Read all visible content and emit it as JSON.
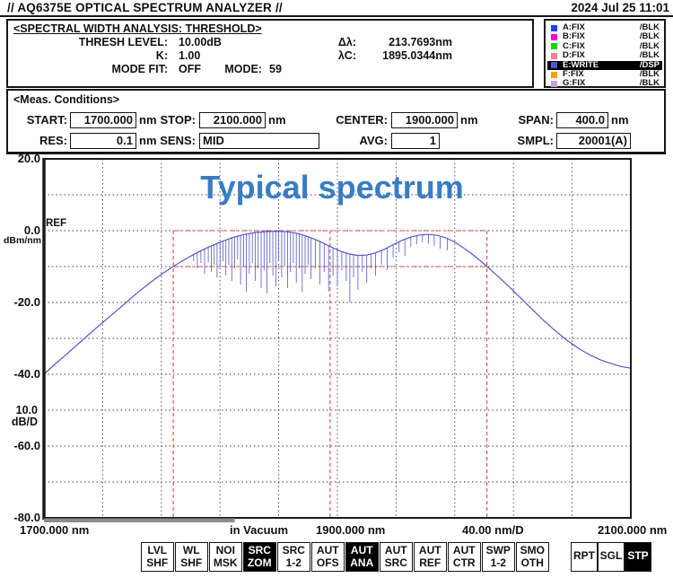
{
  "titlebar": {
    "title": "// AQ6375E OPTICAL SPECTRUM ANALYZER //",
    "datetime": "2024 Jul 25 11:01"
  },
  "analysis": {
    "heading": "<SPECTRAL WIDTH ANALYSIS: THRESHOLD>",
    "left": [
      {
        "label": "THRESH LEVEL:",
        "value": "10.00dB"
      },
      {
        "label": "K:",
        "value": "1.00"
      },
      {
        "label": "MODE FIT:",
        "value": "OFF"
      }
    ],
    "right": [
      {
        "label": "Δλ:",
        "value": "213.7693nm"
      },
      {
        "label": "λC:",
        "value": "1895.0344nm"
      },
      {
        "label": "MODE:",
        "value": "59"
      }
    ]
  },
  "traces": [
    {
      "id": "A:FIX",
      "status": "/BLK",
      "color": "#2040f0",
      "active": false
    },
    {
      "id": "B:FIX",
      "status": "/BLK",
      "color": "#ff00cc",
      "active": false
    },
    {
      "id": "C:FIX",
      "status": "/BLK",
      "color": "#00dd00",
      "active": false
    },
    {
      "id": "D:FIX",
      "status": "/BLK",
      "color": "#f08090",
      "active": false
    },
    {
      "id": "E:WRITE",
      "status": "/DSP",
      "color": "#5656c8",
      "active": true
    },
    {
      "id": "F:FIX",
      "status": "/BLK",
      "color": "#ffa000",
      "active": false
    },
    {
      "id": "G:FIX",
      "status": "/BLK",
      "color": "#c8a0d8",
      "active": false
    }
  ],
  "meas": {
    "heading": "<Meas. Conditions>",
    "fields": [
      {
        "label": "START:",
        "value": "1700.000",
        "unit": "nm"
      },
      {
        "label": "STOP:",
        "value": "2100.000",
        "unit": "nm"
      },
      {
        "label": "CENTER:",
        "value": "1900.000",
        "unit": "nm"
      },
      {
        "label": "SPAN:",
        "value": "400.0",
        "unit": "nm"
      },
      {
        "label": "RES:",
        "value": "0.1",
        "unit": "nm"
      },
      {
        "label": "SENS:",
        "value": "MID",
        "unit": ""
      },
      {
        "label": "AVG:",
        "value": "1",
        "unit": ""
      },
      {
        "label": "SMPL:",
        "value": "20001(A)",
        "unit": ""
      }
    ]
  },
  "chart_data": {
    "type": "line",
    "title": "Typical spectrum",
    "title_color": "#3a7cc4",
    "trace_color": "#5656c8",
    "threshold_color": "#e04848",
    "grid": "dotted",
    "x_range_nm": [
      1700,
      2100
    ],
    "y_range_db": [
      -80,
      20
    ],
    "x_per_div_nm": 40,
    "y_per_div_db": 10,
    "ref_level_db": 0,
    "ref_label": "REF",
    "y_ticks": [
      "20.0",
      "0.0",
      "-20.0",
      "-40.0",
      "-60.0",
      "-80.0"
    ],
    "y_unit": "dBm/nm",
    "y_scale_value": "10.0",
    "y_scale_unit": "dB/D",
    "footer": {
      "left_tick": "1700.000 nm",
      "vacuum": "in Vacuum",
      "center_tick": "1900.000 nm",
      "per_div": "40.00 nm/D",
      "right_tick": "2100.000 nm"
    },
    "threshold": {
      "level_db": -10,
      "delta_lambda_nm": 213.7693,
      "lambda_c_nm": 1895.0344,
      "lines_nm": [
        1788.1498,
        1895.0344,
        2001.9191
      ]
    },
    "sweep_bar": {
      "start_nm": 1700,
      "end_nm": 1830
    },
    "envelope_points": [
      [
        1700,
        -40
      ],
      [
        1708,
        -37
      ],
      [
        1716,
        -34.2
      ],
      [
        1724,
        -31.3
      ],
      [
        1732,
        -28.4
      ],
      [
        1740,
        -25.6
      ],
      [
        1748,
        -22.8
      ],
      [
        1756,
        -20
      ],
      [
        1764,
        -17.2
      ],
      [
        1772,
        -14.6
      ],
      [
        1780,
        -12.2
      ],
      [
        1788,
        -10
      ],
      [
        1796,
        -8
      ],
      [
        1804,
        -6.2
      ],
      [
        1812,
        -4.6
      ],
      [
        1820,
        -3.2
      ],
      [
        1828,
        -2
      ],
      [
        1836,
        -1.1
      ],
      [
        1844,
        -0.5
      ],
      [
        1852,
        -0.25
      ],
      [
        1860,
        -0.15
      ],
      [
        1866,
        -0.3
      ],
      [
        1872,
        -0.7
      ],
      [
        1878,
        -1.4
      ],
      [
        1884,
        -2.3
      ],
      [
        1890,
        -3.4
      ],
      [
        1896,
        -4.6
      ],
      [
        1902,
        -5.7
      ],
      [
        1908,
        -6.5
      ],
      [
        1914,
        -6.9
      ],
      [
        1920,
        -6.8
      ],
      [
        1926,
        -6.2
      ],
      [
        1932,
        -5.2
      ],
      [
        1938,
        -3.9
      ],
      [
        1944,
        -2.7
      ],
      [
        1950,
        -1.8
      ],
      [
        1956,
        -1.2
      ],
      [
        1962,
        -1.05
      ],
      [
        1968,
        -1.3
      ],
      [
        1974,
        -2
      ],
      [
        1980,
        -3.2
      ],
      [
        1986,
        -4.8
      ],
      [
        1992,
        -6.6
      ],
      [
        1998,
        -8.6
      ],
      [
        2002,
        -10
      ],
      [
        2008,
        -12.2
      ],
      [
        2016,
        -15.2
      ],
      [
        2024,
        -18.4
      ],
      [
        2032,
        -21.6
      ],
      [
        2040,
        -24.8
      ],
      [
        2048,
        -27.7
      ],
      [
        2056,
        -30.4
      ],
      [
        2064,
        -32.7
      ],
      [
        2072,
        -34.6
      ],
      [
        2080,
        -36.1
      ],
      [
        2088,
        -37.2
      ],
      [
        2094,
        -37.9
      ],
      [
        2100,
        -38.3
      ]
    ],
    "absorption_lines": [
      [
        1802,
        -8.5
      ],
      [
        1804.5,
        -10.5
      ],
      [
        1807,
        -9
      ],
      [
        1809.5,
        -12
      ],
      [
        1812,
        -8.8
      ],
      [
        1814,
        -11.5
      ],
      [
        1816,
        -9.5
      ],
      [
        1818,
        -13
      ],
      [
        1820,
        -10
      ],
      [
        1822,
        -8.5
      ],
      [
        1824,
        -12.5
      ],
      [
        1826,
        -9.5
      ],
      [
        1828,
        -14
      ],
      [
        1830,
        -10.5
      ],
      [
        1832,
        -8
      ],
      [
        1834,
        -15
      ],
      [
        1836,
        -10
      ],
      [
        1838,
        -17
      ],
      [
        1840,
        -12
      ],
      [
        1842,
        -9
      ],
      [
        1844,
        -14
      ],
      [
        1846,
        -10.5
      ],
      [
        1848,
        -16
      ],
      [
        1850,
        -11
      ],
      [
        1852,
        -17.5
      ],
      [
        1854,
        -9
      ],
      [
        1856,
        -12.5
      ],
      [
        1858,
        -15.5
      ],
      [
        1860,
        -8.5
      ],
      [
        1862,
        -13
      ],
      [
        1864,
        -10
      ],
      [
        1866,
        -16
      ],
      [
        1868,
        -11.5
      ],
      [
        1870,
        -9
      ],
      [
        1872,
        -14.5
      ],
      [
        1874,
        -10.5
      ],
      [
        1876,
        -17
      ],
      [
        1878,
        -12
      ],
      [
        1880,
        -9.5
      ],
      [
        1882,
        -13.5
      ],
      [
        1885,
        -10.5
      ],
      [
        1888,
        -15
      ],
      [
        1891,
        -11.5
      ],
      [
        1894,
        -17
      ],
      [
        1897,
        -12.5
      ],
      [
        1900,
        -15.5
      ],
      [
        1903,
        -11
      ],
      [
        1906,
        -14
      ],
      [
        1908.5,
        -20
      ],
      [
        1911,
        -13
      ],
      [
        1914,
        -16.5
      ],
      [
        1917,
        -11.5
      ],
      [
        1920,
        -14.5
      ],
      [
        1923,
        -10.5
      ],
      [
        1926,
        -12.5
      ],
      [
        1930,
        -9.5
      ],
      [
        1934,
        -11
      ],
      [
        1938,
        -7.5
      ],
      [
        1942,
        -6
      ],
      [
        1946,
        -7
      ],
      [
        1950,
        -4.5
      ],
      [
        1954,
        -3.8
      ],
      [
        1958,
        -3.2
      ],
      [
        1962,
        -3.6
      ],
      [
        1966,
        -4.2
      ],
      [
        1970,
        -5
      ],
      [
        1975,
        -5.5
      ]
    ]
  },
  "softkeys": {
    "main": [
      {
        "l1": "LVL",
        "l2": "SHF",
        "active": false
      },
      {
        "l1": "WL",
        "l2": "SHF",
        "active": false
      },
      {
        "l1": "NOI",
        "l2": "MSK",
        "active": false
      },
      {
        "l1": "SRC",
        "l2": "ZOM",
        "active": true
      },
      {
        "l1": "SRC",
        "l2": "1-2",
        "active": false
      },
      {
        "l1": "AUT",
        "l2": "OFS",
        "active": false
      },
      {
        "l1": "AUT",
        "l2": "ANA",
        "active": true
      },
      {
        "l1": "AUT",
        "l2": "SRC",
        "active": false
      },
      {
        "l1": "AUT",
        "l2": "REF",
        "active": false
      },
      {
        "l1": "AUT",
        "l2": "CTR",
        "active": false
      },
      {
        "l1": "SWP",
        "l2": "1-2",
        "active": false
      },
      {
        "l1": "SMO",
        "l2": "OTH",
        "active": false
      }
    ],
    "right": [
      {
        "l1": "RPT",
        "active": false
      },
      {
        "l1": "SGL",
        "active": false
      },
      {
        "l1": "STP",
        "active": true
      }
    ]
  }
}
